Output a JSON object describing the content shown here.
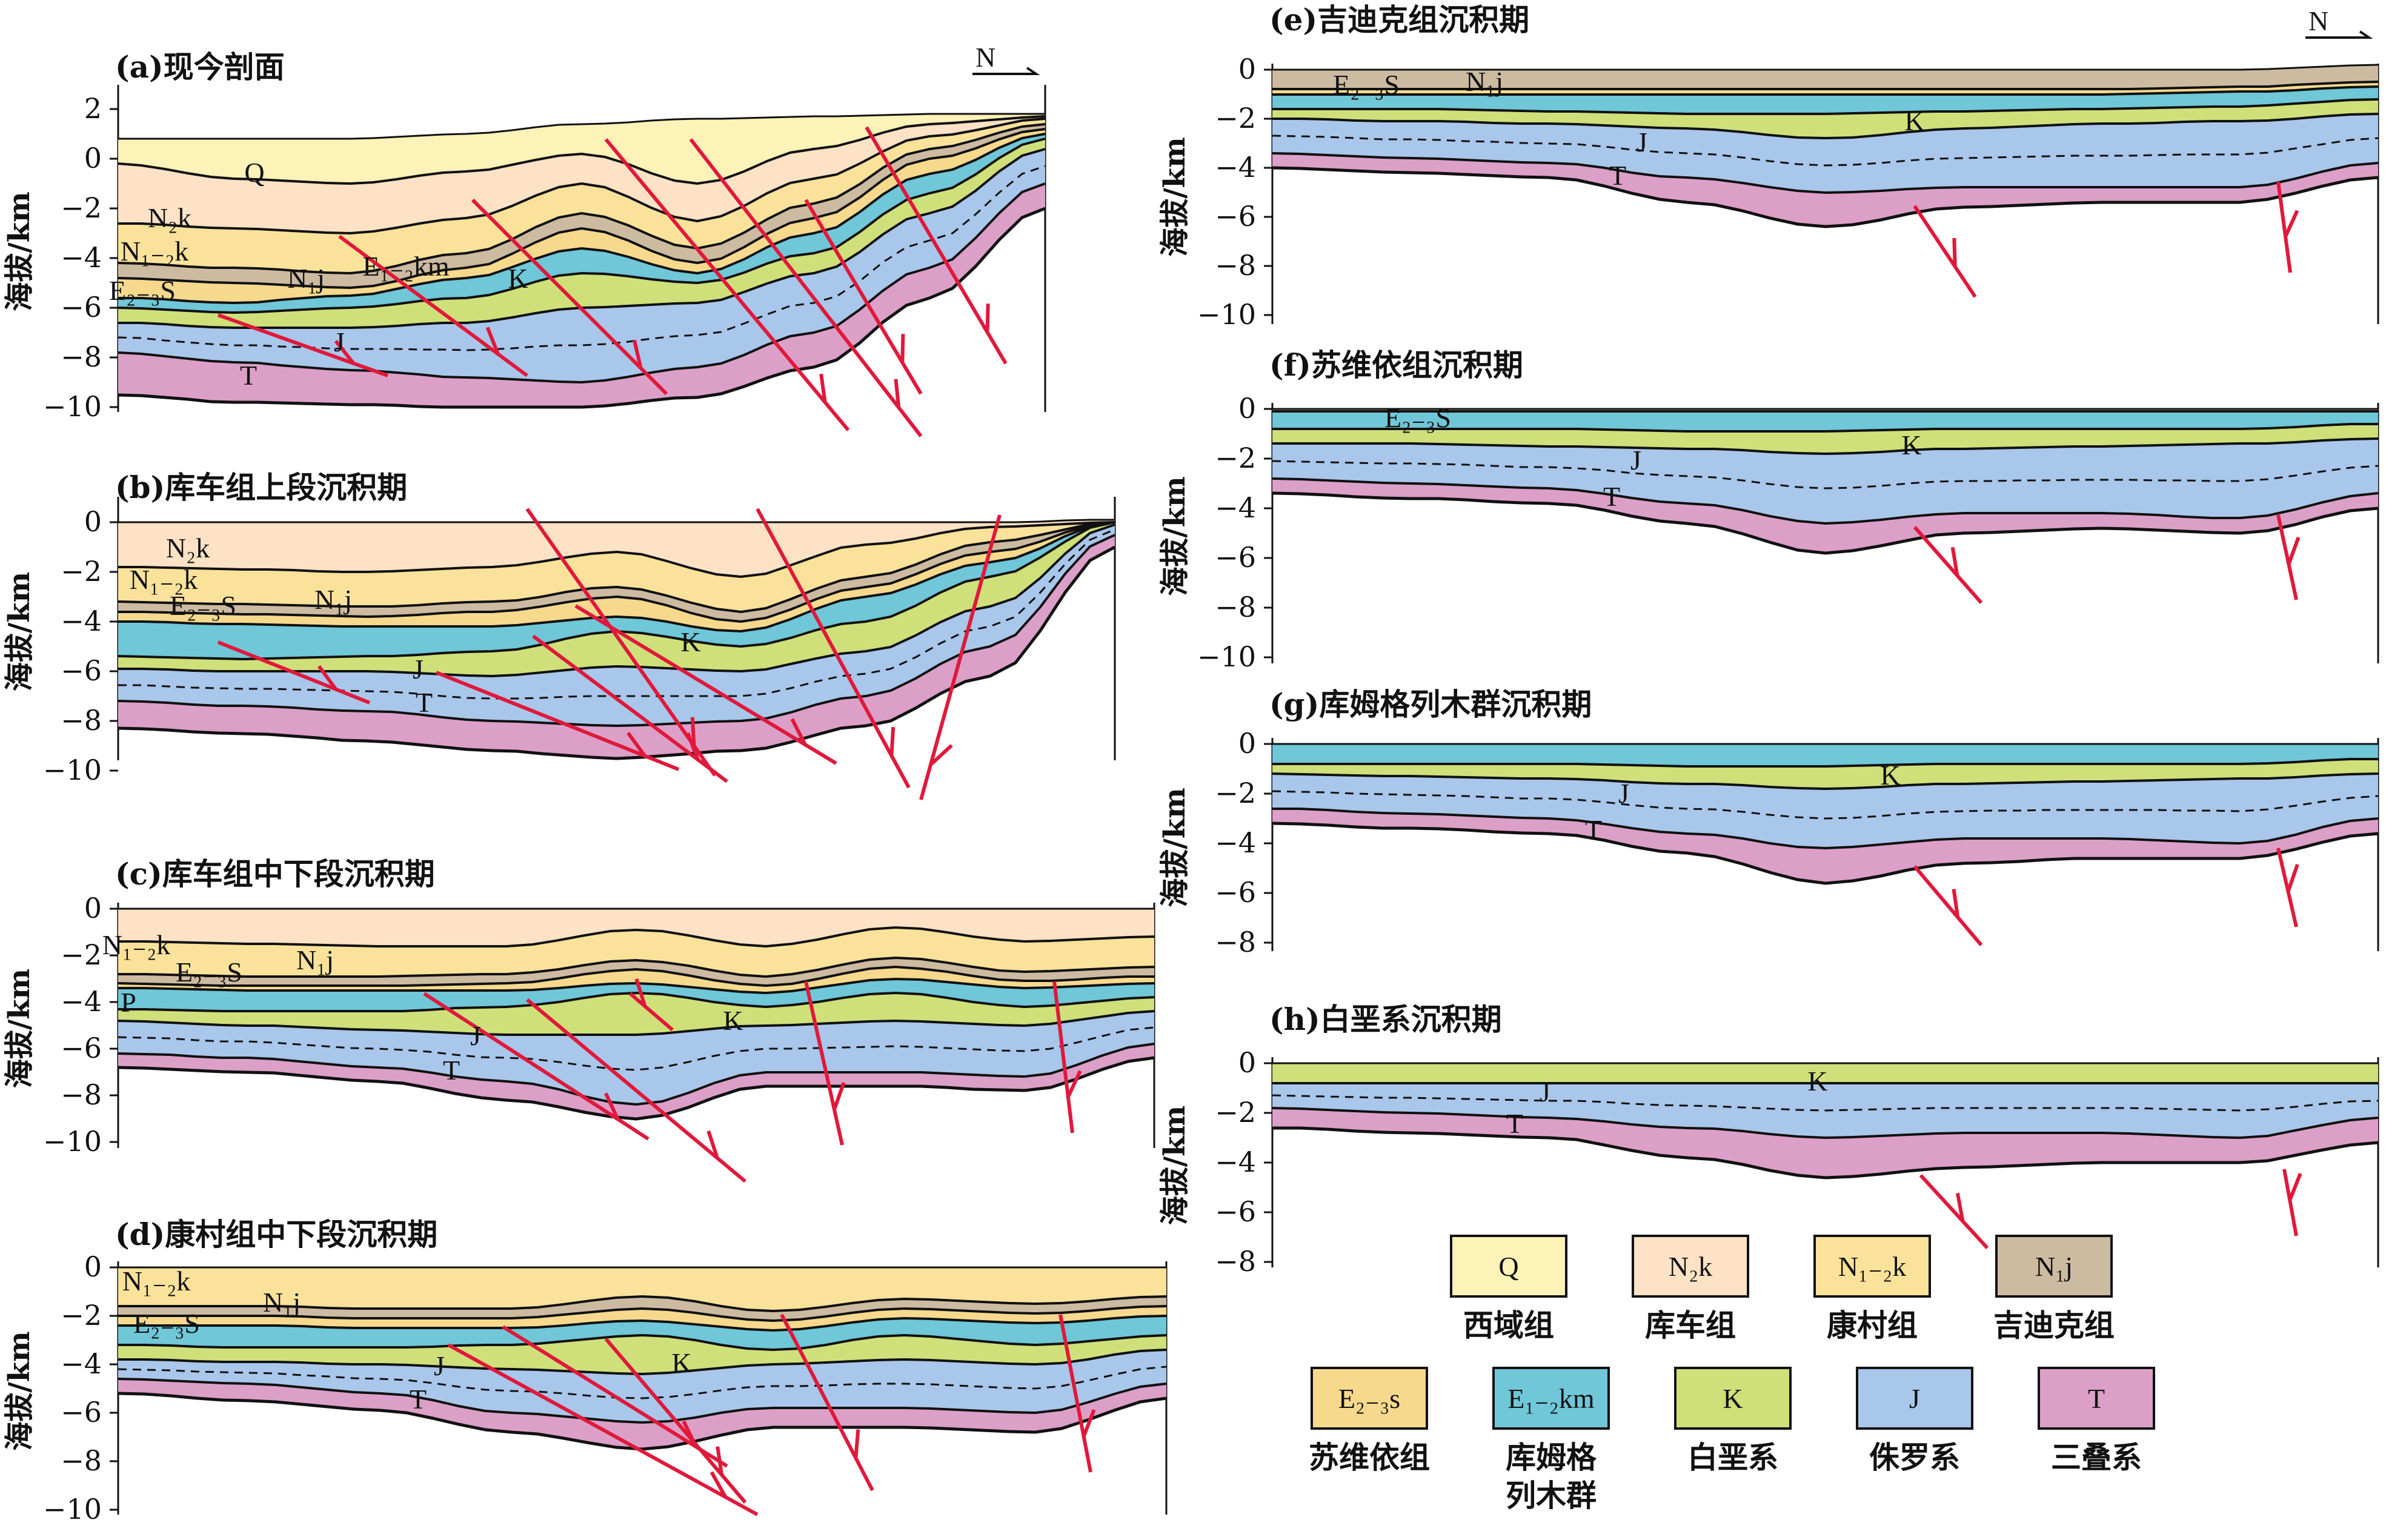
{
  "north_label": "N",
  "y_axis_label": "海拔/km",
  "colors": {
    "Q": "#fdf2b8",
    "N2k": "#fde2c5",
    "N12k": "#fbe29b",
    "N1j": "#cdbba1",
    "E23s": "#f6d98d",
    "E12km": "#6fc7d8",
    "K": "#cfe07a",
    "J": "#a9c7ea",
    "T": "#dca0c8",
    "fault": "#e0193b"
  },
  "panels": [
    {
      "title": "(a)现今剖面",
      "ticks": [
        "2",
        "0",
        "−2",
        "−4",
        "−6",
        "−8",
        "−10"
      ],
      "labels": [
        {
          "t": "Q"
        },
        {
          "t": "N₂k"
        },
        {
          "t": "N₁₋₂k"
        },
        {
          "t": "E₂₋₃S"
        },
        {
          "t": "N₁j"
        },
        {
          "t": "E₁₋₂km"
        },
        {
          "t": "K"
        },
        {
          "t": "J"
        },
        {
          "t": "T"
        }
      ]
    },
    {
      "title": "(b)库车组上段沉积期",
      "ticks": [
        "0",
        "−2",
        "−4",
        "−6",
        "−8",
        "−10"
      ],
      "labels": [
        {
          "t": "N₂k"
        },
        {
          "t": "N₁₋₂k"
        },
        {
          "t": "E₂₋₃S"
        },
        {
          "t": "N₁j"
        },
        {
          "t": "K"
        },
        {
          "t": "J"
        },
        {
          "t": "T"
        }
      ]
    },
    {
      "title": "(c)库车组中下段沉积期",
      "ticks": [
        "0",
        "−2",
        "−4",
        "−6",
        "−8",
        "−10"
      ],
      "labels": [
        {
          "t": "N₁₋₂k"
        },
        {
          "t": "E₂₋₃S"
        },
        {
          "t": "N₁j"
        },
        {
          "t": "P"
        },
        {
          "t": "K"
        },
        {
          "t": "J"
        },
        {
          "t": "T"
        }
      ]
    },
    {
      "title": "(d)康村组中下段沉积期",
      "ticks": [
        "0",
        "−2",
        "−4",
        "−6",
        "−8",
        "−10"
      ],
      "labels": [
        {
          "t": "N₁₋₂k"
        },
        {
          "t": "E₂₋₃S"
        },
        {
          "t": "N₁j"
        },
        {
          "t": "K"
        },
        {
          "t": "J"
        },
        {
          "t": "T"
        }
      ]
    },
    {
      "title": "(e)吉迪克组沉积期",
      "ticks": [
        "0",
        "−2",
        "−4",
        "−6",
        "−8",
        "−10"
      ],
      "labels": [
        {
          "t": "E₂₋₃S"
        },
        {
          "t": "N₁j"
        },
        {
          "t": "K"
        },
        {
          "t": "J"
        },
        {
          "t": "T"
        }
      ]
    },
    {
      "title": "(f)苏维依组沉积期",
      "ticks": [
        "0",
        "−2",
        "−4",
        "−6",
        "−8",
        "−10"
      ],
      "labels": [
        {
          "t": "E₂₋₃S"
        },
        {
          "t": "K"
        },
        {
          "t": "J"
        },
        {
          "t": "T"
        }
      ]
    },
    {
      "title": "(g)库姆格列木群沉积期",
      "ticks": [
        "0",
        "−2",
        "−4",
        "−6",
        "−8"
      ],
      "labels": [
        {
          "t": "K"
        },
        {
          "t": "J"
        },
        {
          "t": "T"
        }
      ]
    },
    {
      "title": "(h)白垩系沉积期",
      "ticks": [
        "0",
        "−2",
        "−4",
        "−6",
        "−8"
      ],
      "labels": [
        {
          "t": "K"
        },
        {
          "t": "J"
        },
        {
          "t": "T"
        }
      ]
    }
  ],
  "legend": [
    {
      "symbol": "Q",
      "name": "西域组",
      "color": "Q"
    },
    {
      "symbol": "N₂k",
      "name": "库车组",
      "color": "N2k"
    },
    {
      "symbol": "N₁₋₂k",
      "name": "康村组",
      "color": "N12k"
    },
    {
      "symbol": "N₁j",
      "name": "吉迪克组",
      "color": "N1j"
    },
    {
      "symbol": "E₂₋₃s",
      "name": "苏维依组",
      "color": "E23s"
    },
    {
      "symbol": "E₁₋₂km",
      "name": "库姆格列木群",
      "color": "E12km"
    },
    {
      "symbol": "K",
      "name": "白垩系",
      "color": "K"
    },
    {
      "symbol": "J",
      "name": "侏罗系",
      "color": "J"
    },
    {
      "symbol": "T",
      "name": "三叠系",
      "color": "T"
    }
  ]
}
